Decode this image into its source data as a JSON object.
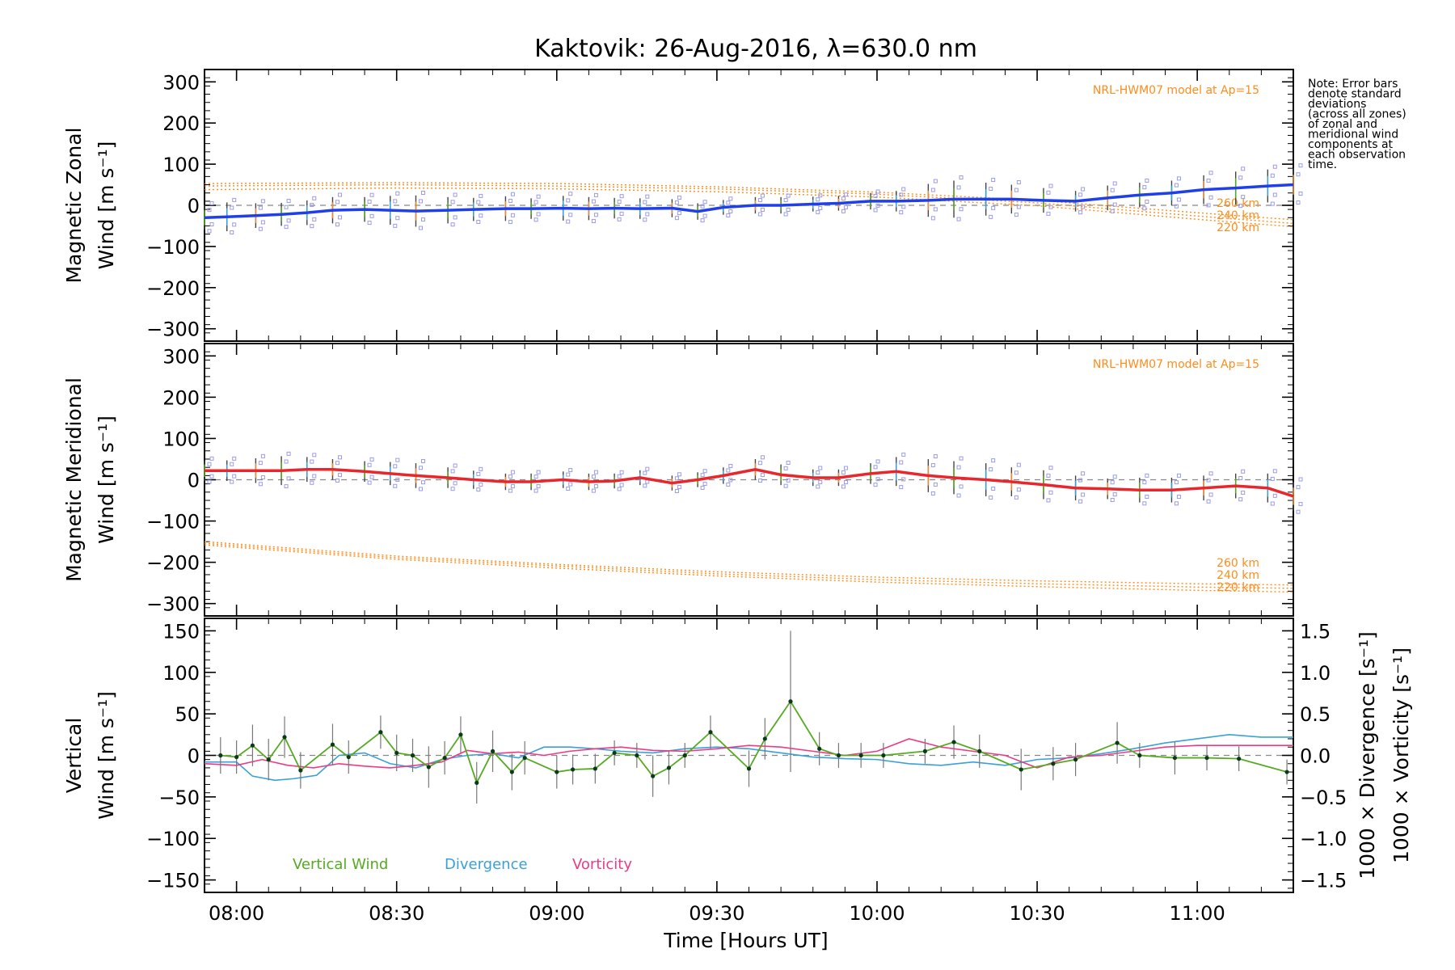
{
  "chart_data": {
    "title": "Kaktovik: 26-Aug-2016, λ=630.0 nm",
    "xlabel": "Time [Hours UT]",
    "xrange_hours": [
      7.9,
      11.3
    ],
    "xticks": [
      {
        "value": 8.0,
        "label": "08:00"
      },
      {
        "value": 8.5,
        "label": "08:30"
      },
      {
        "value": 9.0,
        "label": "09:00"
      },
      {
        "value": 9.5,
        "label": "09:30"
      },
      {
        "value": 10.0,
        "label": "10:00"
      },
      {
        "value": 10.5,
        "label": "10:30"
      },
      {
        "value": 11.0,
        "label": "11:00"
      }
    ],
    "note": [
      "Note: Error bars",
      "denote standard",
      "deviations",
      "(across all zones)",
      "of zonal and",
      "meridional wind",
      "components at",
      "each observation",
      "time."
    ],
    "colors": {
      "zonal": "#1f3fe8",
      "meridional": "#e8262b",
      "model": "#ff8c1a",
      "vertical": "#55aa22",
      "divergence": "#3aa0d8",
      "vorticity": "#ee3a86",
      "zone_points": "#9a9ce8"
    },
    "panels": [
      {
        "type": "line",
        "id": "zonal",
        "ylabel_lines": [
          "Magnetic Zonal",
          "Wind [m s⁻¹]"
        ],
        "ylim": [
          -330,
          330
        ],
        "yticks": [
          {
            "value": 300,
            "label": "300"
          },
          {
            "value": 200,
            "label": "200"
          },
          {
            "value": 100,
            "label": "100"
          },
          {
            "value": 0,
            "label": "0"
          },
          {
            "value": -100,
            "label": "−100"
          },
          {
            "value": -200,
            "label": "−200"
          },
          {
            "value": -300,
            "label": "−300"
          }
        ],
        "model_label": "NRL-HWM07 model at Ap=15",
        "model_curves": [
          {
            "name": "260 km",
            "x": [
              7.9,
              8.5,
              9.0,
              9.5,
              10.0,
              10.5,
              11.0,
              11.3
            ],
            "y": [
              53,
              55,
              53,
              45,
              32,
              12,
              -18,
              -35
            ]
          },
          {
            "name": "240 km",
            "x": [
              7.9,
              8.5,
              9.0,
              9.5,
              10.0,
              10.5,
              11.0,
              11.3
            ],
            "y": [
              47,
              50,
              47,
              40,
              27,
              6,
              -26,
              -44
            ]
          },
          {
            "name": "220 km",
            "x": [
              7.9,
              8.5,
              9.0,
              9.5,
              10.0,
              10.5,
              11.0,
              11.3
            ],
            "y": [
              38,
              42,
              40,
              33,
              20,
              -1,
              -34,
              -52
            ]
          }
        ],
        "series": [
          {
            "x": [
              7.9,
              7.97,
              8.06,
              8.14,
              8.22,
              8.3,
              8.4,
              8.48,
              8.56,
              8.66,
              8.74,
              8.84,
              8.92,
              9.02,
              9.1,
              9.18,
              9.26,
              9.36,
              9.44,
              9.52,
              9.62,
              9.7,
              9.8,
              9.88,
              9.98,
              10.06,
              10.16,
              10.24,
              10.34,
              10.42,
              10.52,
              10.62,
              10.72,
              10.82,
              10.92,
              11.02,
              11.12,
              11.22,
              11.3
            ],
            "y": [
              -30,
              -28,
              -25,
              -22,
              -18,
              -12,
              -10,
              -12,
              -14,
              -12,
              -10,
              -8,
              -8,
              -7,
              -8,
              -7,
              -8,
              -7,
              -15,
              -5,
              0,
              0,
              3,
              5,
              10,
              10,
              12,
              15,
              15,
              15,
              12,
              10,
              18,
              25,
              30,
              38,
              42,
              47,
              50
            ],
            "error": [
              30,
              35,
              30,
              28,
              30,
              32,
              30,
              35,
              38,
              32,
              28,
              30,
              25,
              30,
              28,
              25,
              25,
              22,
              20,
              18,
              20,
              20,
              18,
              18,
              20,
              25,
              40,
              45,
              40,
              35,
              30,
              25,
              30,
              30,
              30,
              35,
              40,
              40,
              40
            ]
          }
        ]
      },
      {
        "type": "line",
        "id": "meridional",
        "ylabel_lines": [
          "Magnetic Meridional",
          "Wind [m s⁻¹]"
        ],
        "ylim": [
          -330,
          330
        ],
        "yticks": [
          {
            "value": 300,
            "label": "300"
          },
          {
            "value": 200,
            "label": "200"
          },
          {
            "value": 100,
            "label": "100"
          },
          {
            "value": 0,
            "label": "0"
          },
          {
            "value": -100,
            "label": "−100"
          },
          {
            "value": -200,
            "label": "−200"
          },
          {
            "value": -300,
            "label": "−300"
          }
        ],
        "model_label": "NRL-HWM07 model at Ap=15",
        "model_curves": [
          {
            "name": "260 km",
            "x": [
              7.9,
              8.5,
              9.0,
              9.5,
              10.0,
              10.5,
              11.0,
              11.3
            ],
            "y": [
              -150,
              -185,
              -205,
              -223,
              -236,
              -245,
              -252,
              -255
            ]
          },
          {
            "name": "240 km",
            "x": [
              7.9,
              8.5,
              9.0,
              9.5,
              10.0,
              10.5,
              11.0,
              11.3
            ],
            "y": [
              -154,
              -189,
              -209,
              -228,
              -242,
              -252,
              -260,
              -263
            ]
          },
          {
            "name": "220 km",
            "x": [
              7.9,
              8.5,
              9.0,
              9.5,
              10.0,
              10.5,
              11.0,
              11.3
            ],
            "y": [
              -158,
              -193,
              -214,
              -233,
              -248,
              -259,
              -268,
              -272
            ]
          }
        ],
        "series": [
          {
            "x": [
              7.9,
              7.97,
              8.06,
              8.14,
              8.22,
              8.3,
              8.4,
              8.48,
              8.56,
              8.66,
              8.74,
              8.84,
              8.92,
              9.02,
              9.1,
              9.18,
              9.26,
              9.36,
              9.44,
              9.52,
              9.62,
              9.7,
              9.8,
              9.88,
              9.98,
              10.06,
              10.16,
              10.24,
              10.34,
              10.42,
              10.52,
              10.62,
              10.72,
              10.82,
              10.92,
              11.02,
              11.12,
              11.22,
              11.3
            ],
            "y": [
              22,
              22,
              22,
              22,
              25,
              25,
              20,
              15,
              10,
              5,
              0,
              -5,
              -5,
              0,
              -5,
              -3,
              5,
              -8,
              0,
              10,
              25,
              12,
              5,
              5,
              15,
              20,
              10,
              5,
              0,
              -5,
              -12,
              -20,
              -22,
              -25,
              -25,
              -20,
              -15,
              -20,
              -40
            ],
            "error": [
              25,
              25,
              30,
              35,
              30,
              25,
              25,
              28,
              30,
              25,
              22,
              20,
              20,
              20,
              20,
              18,
              18,
              18,
              18,
              20,
              25,
              25,
              20,
              20,
              25,
              35,
              40,
              40,
              40,
              35,
              35,
              30,
              25,
              30,
              30,
              30,
              30,
              35,
              35
            ]
          }
        ]
      },
      {
        "type": "line",
        "id": "vertical",
        "ylabel_lines": [
          "Vertical",
          "Wind [m s⁻¹]"
        ],
        "ylim": [
          -165,
          165
        ],
        "yticks": [
          {
            "value": 150,
            "label": "150"
          },
          {
            "value": 100,
            "label": "100"
          },
          {
            "value": 50,
            "label": "50"
          },
          {
            "value": 0,
            "label": "0"
          },
          {
            "value": -50,
            "label": "−50"
          },
          {
            "value": -100,
            "label": "−100"
          },
          {
            "value": -150,
            "label": "−150"
          }
        ],
        "y2lim": [
          -1.65,
          1.65
        ],
        "y2ticks": [
          {
            "value": 1.5,
            "label": "1.5"
          },
          {
            "value": 1.0,
            "label": "1.0"
          },
          {
            "value": 0.5,
            "label": "0.5"
          },
          {
            "value": 0.0,
            "label": "0.0"
          },
          {
            "value": -0.5,
            "label": "−0.5"
          },
          {
            "value": -1.0,
            "label": "−1.0"
          },
          {
            "value": -1.5,
            "label": "−1.5"
          }
        ],
        "y2label_divergence": "1000 × Divergence [s⁻¹]",
        "y2label_vorticity": "1000 × Vorticity [s⁻¹]",
        "series": [
          {
            "name": "Vertical Wind",
            "x": [
              7.95,
              8.0,
              8.05,
              8.1,
              8.15,
              8.2,
              8.3,
              8.35,
              8.45,
              8.5,
              8.55,
              8.6,
              8.65,
              8.7,
              8.75,
              8.8,
              8.86,
              8.9,
              9.0,
              9.05,
              9.12,
              9.18,
              9.25,
              9.3,
              9.35,
              9.4,
              9.48,
              9.6,
              9.65,
              9.73,
              9.82,
              9.88,
              9.95,
              10.02,
              10.15,
              10.24,
              10.32,
              10.45,
              10.55,
              10.62,
              10.75,
              10.82,
              10.93,
              11.03,
              11.13,
              11.28
            ],
            "y": [
              0,
              -2,
              12,
              -5,
              22,
              -18,
              13,
              -2,
              28,
              3,
              0,
              -14,
              -3,
              25,
              -33,
              5,
              -20,
              -3,
              -20,
              -17,
              -16,
              3,
              0,
              -25,
              -15,
              0,
              28,
              -16,
              20,
              65,
              8,
              0,
              0,
              0,
              5,
              16,
              5,
              -17,
              -10,
              -5,
              15,
              0,
              -3,
              -3,
              -4,
              -20
            ],
            "error": [
              22,
              20,
              25,
              25,
              25,
              22,
              25,
              20,
              20,
              22,
              20,
              25,
              20,
              22,
              25,
              25,
              22,
              20,
              20,
              18,
              18,
              15,
              15,
              25,
              20,
              15,
              20,
              22,
              25,
              85,
              20,
              15,
              15,
              15,
              15,
              20,
              20,
              25,
              20,
              20,
              25,
              15,
              20,
              15,
              15,
              15
            ]
          },
          {
            "name": "Divergence",
            "x": [
              7.9,
              8.0,
              8.05,
              8.12,
              8.18,
              8.25,
              8.32,
              8.4,
              8.48,
              8.56,
              8.64,
              8.72,
              8.8,
              8.88,
              8.96,
              9.04,
              9.12,
              9.2,
              9.3,
              9.4,
              9.5,
              9.6,
              9.7,
              9.8,
              9.9,
              10.0,
              10.1,
              10.2,
              10.3,
              10.4,
              10.5,
              10.6,
              10.7,
              10.8,
              10.9,
              11.0,
              11.1,
              11.2,
              11.3
            ],
            "y": [
              -0.08,
              -0.08,
              -0.25,
              -0.3,
              -0.28,
              -0.24,
              0.0,
              0.03,
              -0.1,
              -0.15,
              -0.05,
              0.0,
              0.02,
              -0.03,
              0.1,
              0.1,
              0.08,
              0.05,
              0.03,
              0.08,
              0.1,
              0.08,
              0.03,
              -0.02,
              -0.04,
              -0.05,
              -0.1,
              -0.12,
              -0.08,
              -0.12,
              -0.05,
              -0.03,
              0.02,
              0.08,
              0.15,
              0.2,
              0.25,
              0.22,
              0.22
            ]
          },
          {
            "name": "Vorticity",
            "x": [
              7.9,
              8.0,
              8.08,
              8.16,
              8.24,
              8.32,
              8.4,
              8.48,
              8.56,
              8.64,
              8.72,
              8.8,
              8.88,
              8.96,
              9.04,
              9.12,
              9.2,
              9.3,
              9.4,
              9.5,
              9.6,
              9.7,
              9.8,
              9.9,
              10.0,
              10.1,
              10.2,
              10.3,
              10.4,
              10.5,
              10.6,
              10.7,
              10.8,
              10.9,
              11.0,
              11.1,
              11.2,
              11.3
            ],
            "y": [
              -0.1,
              -0.12,
              -0.05,
              -0.12,
              -0.15,
              -0.1,
              -0.13,
              -0.15,
              -0.12,
              -0.08,
              0.06,
              0.02,
              0.04,
              0.0,
              0.05,
              0.08,
              0.1,
              0.06,
              0.05,
              0.08,
              0.12,
              0.1,
              0.05,
              0.0,
              0.05,
              0.2,
              0.1,
              0.05,
              0.0,
              -0.15,
              -0.02,
              0.0,
              0.05,
              0.1,
              0.12,
              0.12,
              0.12,
              0.12
            ]
          }
        ]
      }
    ]
  }
}
